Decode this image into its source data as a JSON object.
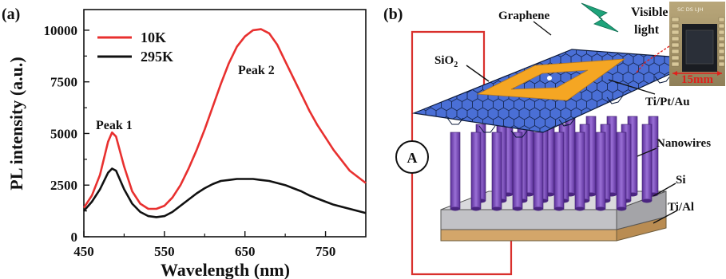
{
  "panel_a": {
    "label": "(a)",
    "annotations": {
      "peak1": "Peak 1",
      "peak2": "Peak 2"
    },
    "chart_data": {
      "type": "line",
      "xlabel": "Wavelength (nm)",
      "ylabel": "PL intensity (a.u.)",
      "xlim": [
        450,
        800
      ],
      "ylim": [
        0,
        11000
      ],
      "x_ticks": [
        450,
        550,
        650,
        750
      ],
      "y_ticks": [
        0,
        2500,
        5000,
        7500,
        10000
      ],
      "legend_position": "top-left",
      "grid": false,
      "series": [
        {
          "name": "10K",
          "color": "#e8302f",
          "x": [
            450,
            460,
            470,
            480,
            485,
            490,
            500,
            510,
            520,
            530,
            540,
            550,
            560,
            570,
            580,
            590,
            600,
            610,
            620,
            630,
            640,
            650,
            660,
            670,
            680,
            690,
            700,
            710,
            720,
            730,
            740,
            750,
            760,
            770,
            780,
            790,
            800
          ],
          "y": [
            1400,
            2000,
            3000,
            4600,
            5050,
            4850,
            3400,
            2200,
            1600,
            1350,
            1350,
            1500,
            1900,
            2500,
            3300,
            4200,
            5200,
            6300,
            7400,
            8400,
            9200,
            9700,
            10000,
            10050,
            9850,
            9300,
            8500,
            7700,
            6900,
            6100,
            5400,
            4800,
            4200,
            3700,
            3200,
            2900,
            2600
          ]
        },
        {
          "name": "295K",
          "color": "#111111",
          "x": [
            450,
            460,
            470,
            480,
            485,
            490,
            500,
            510,
            520,
            530,
            540,
            550,
            560,
            570,
            580,
            590,
            600,
            610,
            620,
            630,
            640,
            650,
            660,
            670,
            680,
            690,
            700,
            710,
            720,
            730,
            740,
            750,
            760,
            770,
            780,
            790,
            800
          ],
          "y": [
            1250,
            1700,
            2300,
            3100,
            3300,
            3200,
            2300,
            1600,
            1200,
            1000,
            950,
            1000,
            1200,
            1500,
            1800,
            2100,
            2350,
            2550,
            2700,
            2750,
            2800,
            2800,
            2800,
            2750,
            2700,
            2600,
            2500,
            2350,
            2200,
            2000,
            1850,
            1700,
            1550,
            1450,
            1350,
            1250,
            1150
          ]
        }
      ]
    }
  },
  "panel_b": {
    "label": "(b)",
    "labels": {
      "graphene": "Graphene",
      "visible": "Visible",
      "light": "light",
      "sio2_main": "SiO",
      "sio2_sub": "2",
      "electrode": "Ti/Pt/Au",
      "nanowires": "Nanowires",
      "si": "Si",
      "tial": "Ti/Al",
      "ammeter": "A",
      "scale": "15mm",
      "photo_header": "SC DS LJH"
    },
    "colors": {
      "graphene": "#4169d8",
      "electrode": "#f5a623",
      "nanowire": "#7e4fbf",
      "si": "#c7c7cb",
      "tial": "#d8b07a",
      "circuit": "#d9302c",
      "lightning": "#1ea37a"
    }
  }
}
